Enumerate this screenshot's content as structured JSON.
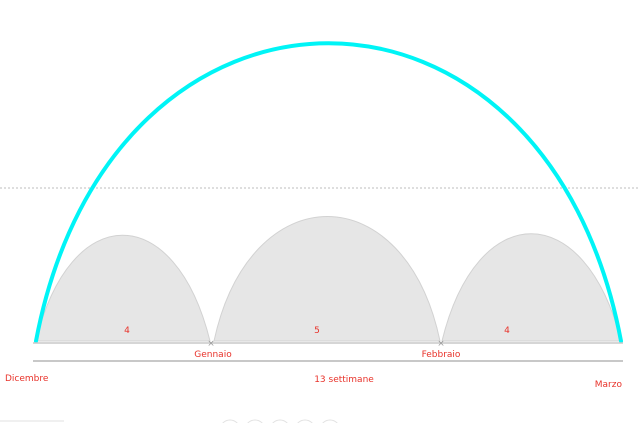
{
  "diagram": {
    "months": {
      "start": "Dicembre",
      "m1": "Gennaio",
      "m2": "Febbraio",
      "end": "Marzo"
    },
    "segments": [
      {
        "weeks": "4"
      },
      {
        "weeks": "5"
      },
      {
        "weeks": "4"
      }
    ],
    "total": "13 settimane",
    "colors": {
      "big_arc": "#00f4f6",
      "small_arc_fill": "#e6e6e6",
      "small_arc_stroke": "#cfcfcf",
      "label": "#e8322a",
      "baseline": "#c8c8c8",
      "dashed_line": "#bdbdbd"
    }
  }
}
